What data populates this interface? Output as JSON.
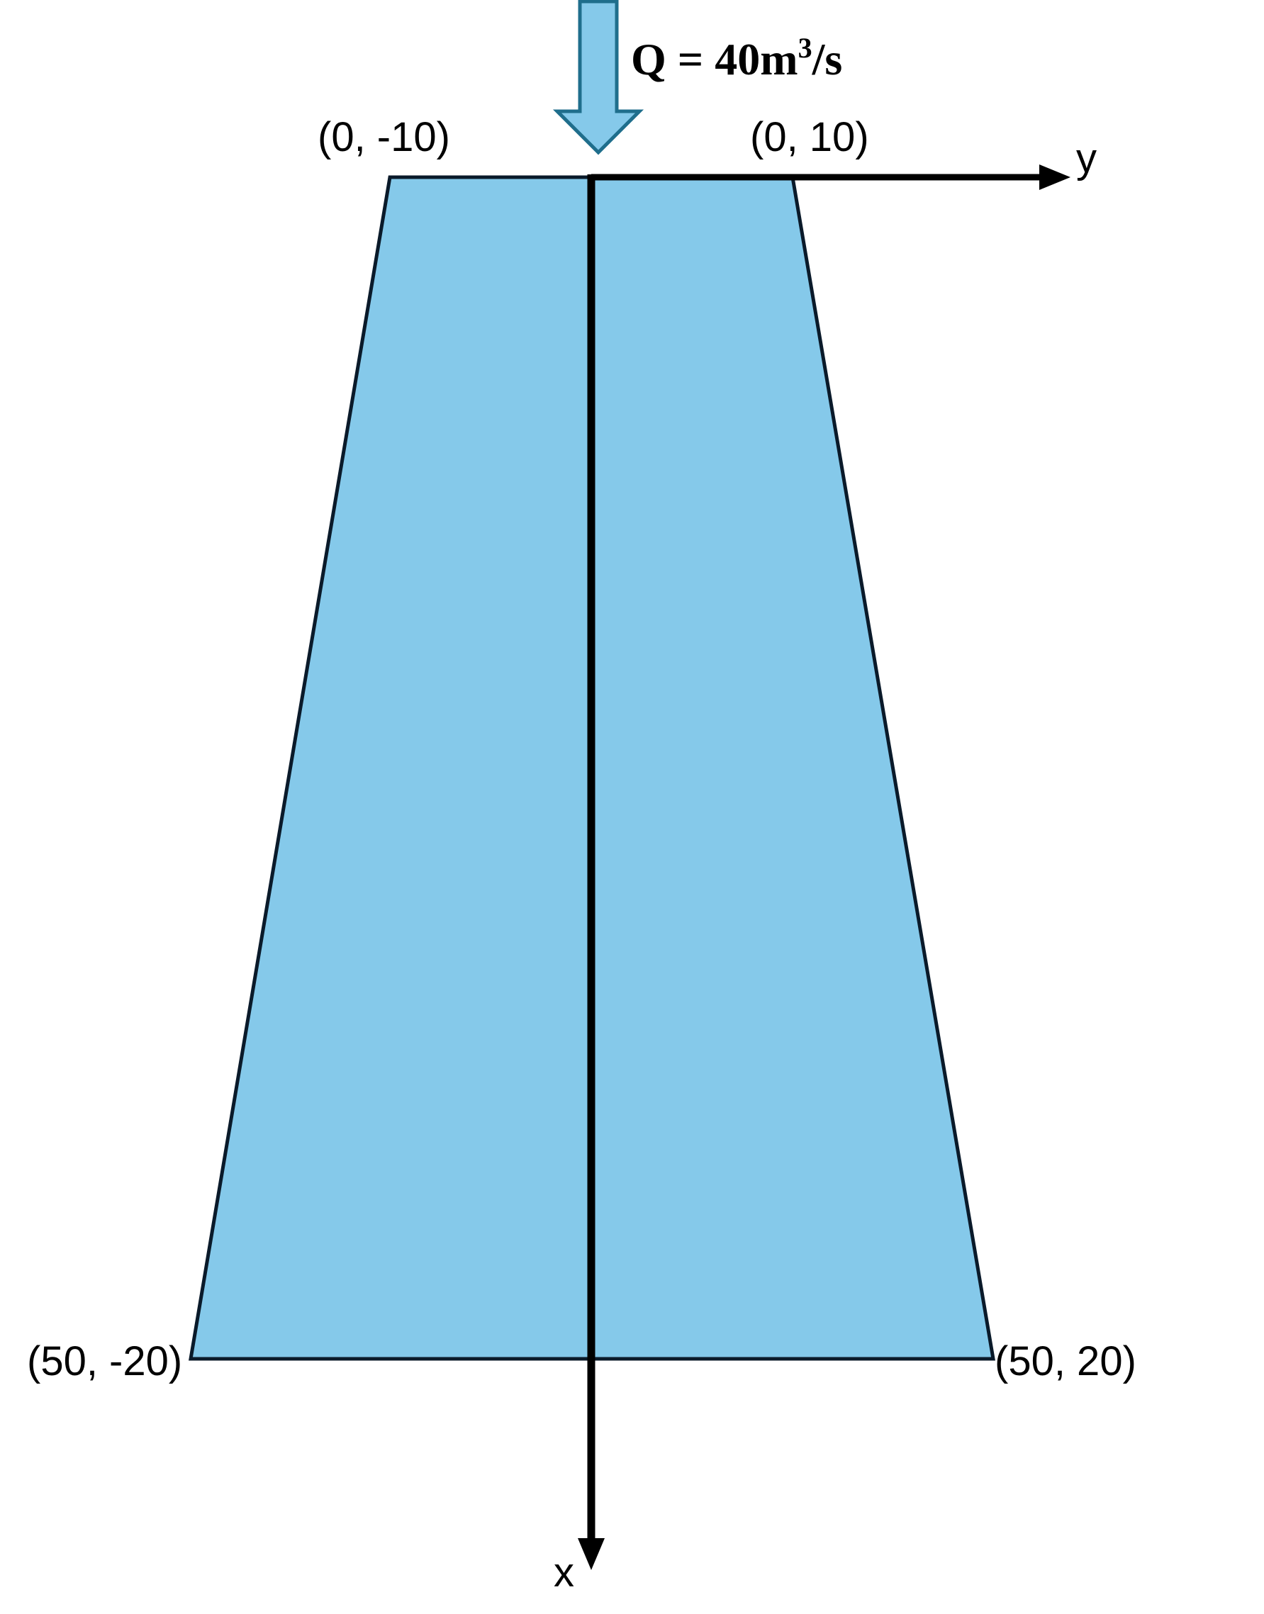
{
  "colors": {
    "water_fill": "#85C9EA",
    "arrow_fill": "#85C9EA",
    "arrow_stroke": "#1F6E8C",
    "outline": "#0A1A2A",
    "axis": "#000000",
    "background": "#FFFFFF"
  },
  "flow": {
    "prefix": "Q = 40m",
    "exponent": "3",
    "suffix": "/s"
  },
  "axes": {
    "x_label": "x",
    "y_label": "y"
  },
  "vertices": {
    "top_left": "(0, -10)",
    "top_right": "(0, 10)",
    "bottom_left": "(50, -20)",
    "bottom_right": "(50, 20)"
  }
}
